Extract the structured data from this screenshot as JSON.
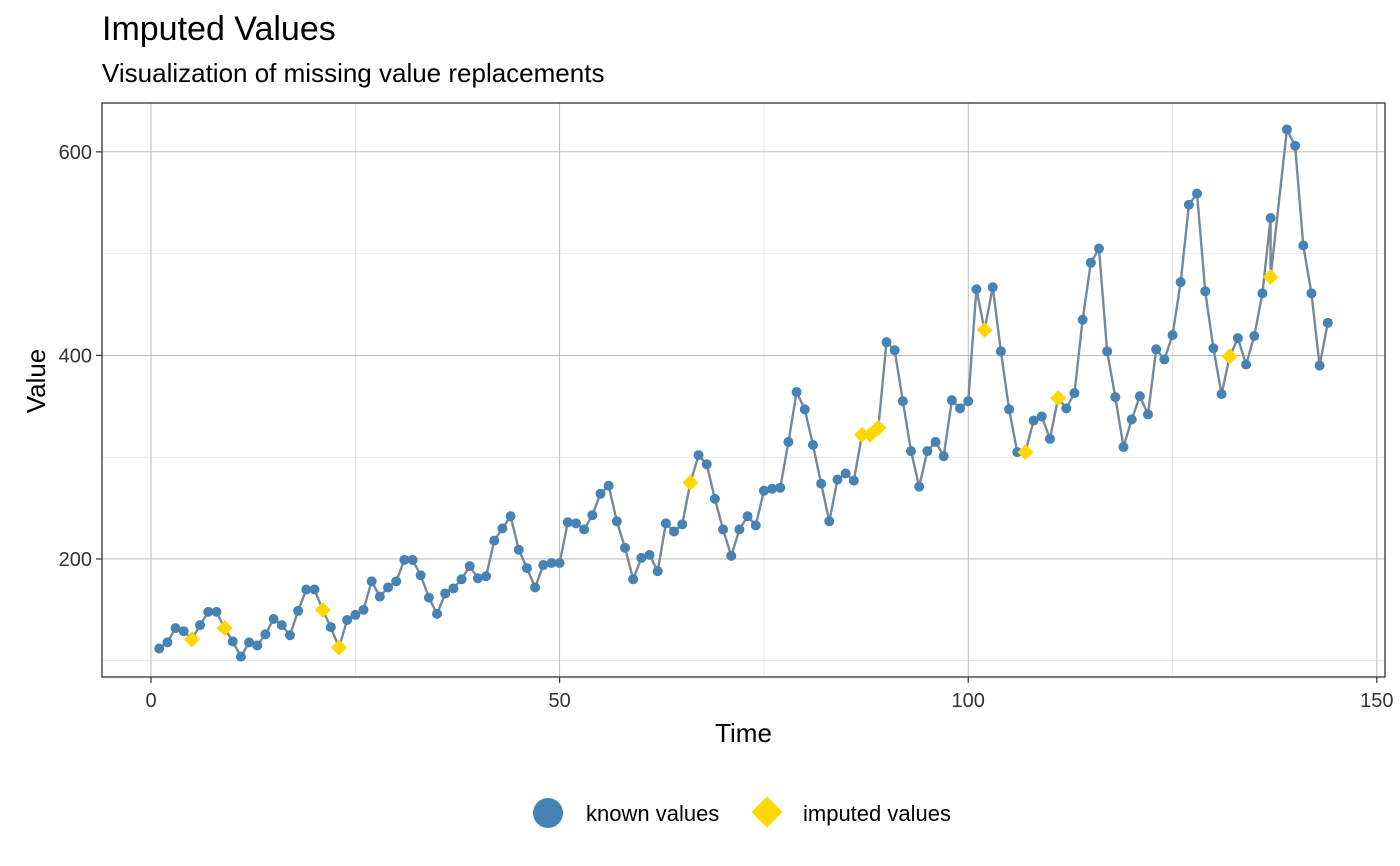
{
  "colors": {
    "known": "#4682B4",
    "imputed": "#FFD700",
    "line": "#778899",
    "grid_major": "#B3B3B3",
    "grid_minor": "#D9D9D9",
    "panel_border": "#333333"
  },
  "chart_data": {
    "type": "line",
    "title": "Imputed Values",
    "subtitle": "Visualization of missing value replacements",
    "xlabel": "Time",
    "ylabel": "Value",
    "xlim": [
      -6,
      151
    ],
    "ylim": [
      84,
      648
    ],
    "x_ticks": [
      0,
      50,
      100,
      150
    ],
    "y_ticks": [
      200,
      400,
      600
    ],
    "grid": true,
    "legend_position": "bottom",
    "series": [
      {
        "name": "known values",
        "marker": "circle",
        "x": [
          1,
          2,
          3,
          4,
          6,
          7,
          8,
          10,
          11,
          12,
          13,
          14,
          15,
          16,
          17,
          18,
          19,
          20,
          22,
          24,
          25,
          26,
          27,
          28,
          29,
          30,
          31,
          32,
          33,
          34,
          35,
          36,
          37,
          38,
          39,
          40,
          41,
          42,
          43,
          44,
          45,
          46,
          47,
          48,
          49,
          50,
          51,
          52,
          53,
          54,
          55,
          56,
          57,
          58,
          59,
          60,
          61,
          62,
          63,
          64,
          65,
          67,
          68,
          69,
          70,
          71,
          72,
          73,
          74,
          75,
          76,
          77,
          78,
          79,
          80,
          81,
          82,
          83,
          84,
          85,
          86,
          90,
          91,
          92,
          93,
          94,
          95,
          96,
          97,
          98,
          99,
          100,
          101,
          103,
          104,
          105,
          106,
          108,
          109,
          110,
          112,
          113,
          114,
          115,
          116,
          117,
          118,
          119,
          120,
          121,
          122,
          123,
          124,
          125,
          126,
          127,
          128,
          129,
          130,
          131,
          133,
          134,
          135,
          136,
          137,
          139,
          140,
          141,
          142,
          143,
          144
        ],
        "y": [
          112,
          118,
          132,
          129,
          135,
          148,
          148,
          119,
          104,
          118,
          115,
          126,
          141,
          135,
          125,
          149,
          170,
          170,
          133,
          140,
          145,
          150,
          178,
          163,
          172,
          178,
          199,
          199,
          184,
          162,
          146,
          166,
          171,
          180,
          193,
          181,
          183,
          218,
          230,
          242,
          209,
          191,
          172,
          194,
          196,
          196,
          236,
          235,
          229,
          243,
          264,
          272,
          237,
          211,
          180,
          201,
          204,
          188,
          235,
          227,
          234,
          302,
          293,
          259,
          229,
          203,
          229,
          242,
          233,
          267,
          269,
          270,
          315,
          364,
          347,
          312,
          274,
          237,
          278,
          284,
          277,
          413,
          405,
          355,
          306,
          271,
          306,
          315,
          301,
          356,
          348,
          355,
          465,
          467,
          404,
          347,
          305,
          336,
          340,
          318,
          348,
          363,
          435,
          491,
          505,
          404,
          359,
          310,
          337,
          360,
          342,
          406,
          396,
          420,
          472,
          548,
          559,
          463,
          407,
          362,
          417,
          391,
          419,
          461,
          535,
          622,
          606,
          508,
          461,
          390,
          432
        ]
      },
      {
        "name": "imputed values",
        "marker": "diamond",
        "x": [
          5,
          9,
          21,
          23,
          66,
          87,
          88,
          89,
          102,
          107,
          111,
          132,
          137
        ],
        "y": [
          121,
          132,
          150,
          113,
          275,
          322,
          322,
          329,
          425,
          305,
          358,
          399,
          477
        ]
      }
    ]
  }
}
